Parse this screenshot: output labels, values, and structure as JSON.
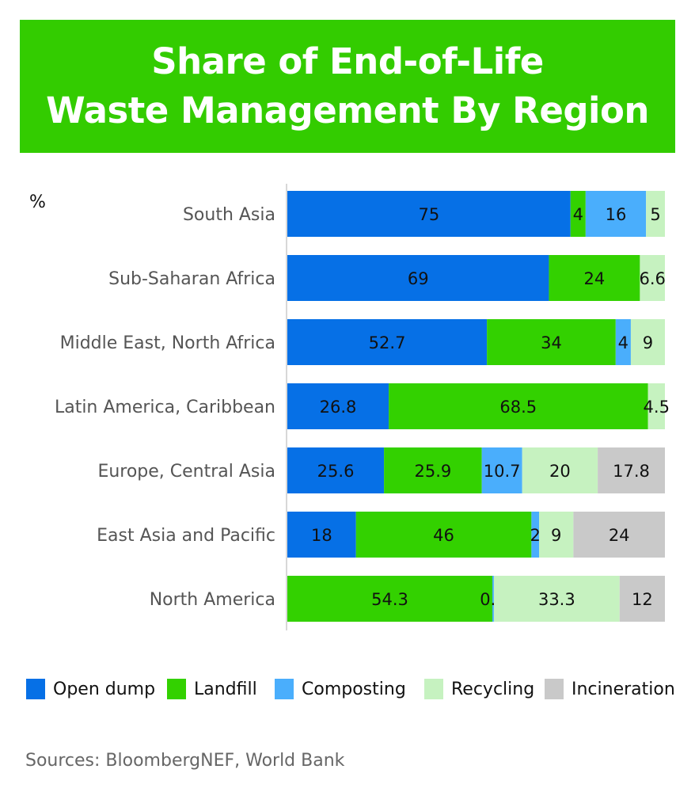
{
  "chart_data": {
    "type": "bar",
    "orientation": "horizontal",
    "stacked": true,
    "title": "Share of End-of-Life\nWaste Management By Region",
    "unit_label": "%",
    "categories": [
      "South Asia",
      "Sub-Saharan Africa",
      "Middle East, North Africa",
      "Latin America, Caribbean",
      "Europe, Central Asia",
      "East Asia and Pacific",
      "North America"
    ],
    "series": [
      {
        "name": "Open dump",
        "color": "#0670e6",
        "values": [
          75,
          69,
          52.7,
          26.8,
          25.6,
          18,
          null
        ]
      },
      {
        "name": "Landfill",
        "color": "#33d100",
        "values": [
          4,
          24,
          34,
          68.5,
          25.9,
          46,
          54.3
        ]
      },
      {
        "name": "Composting",
        "color": "#4aaefc",
        "values": [
          16,
          null,
          4,
          null,
          10.7,
          2,
          0.4
        ]
      },
      {
        "name": "Recycling",
        "color": "#c6f2c0",
        "values": [
          5,
          6.6,
          9,
          4.5,
          20,
          9,
          33.3
        ]
      },
      {
        "name": "Incineration",
        "color": "#c9c9c9",
        "values": [
          null,
          null,
          null,
          null,
          17.8,
          24,
          12
        ]
      }
    ],
    "xlim": [
      0,
      100
    ],
    "grid": false,
    "legend": "bottom",
    "source": "Sources: BloombergNEF, World Bank"
  }
}
